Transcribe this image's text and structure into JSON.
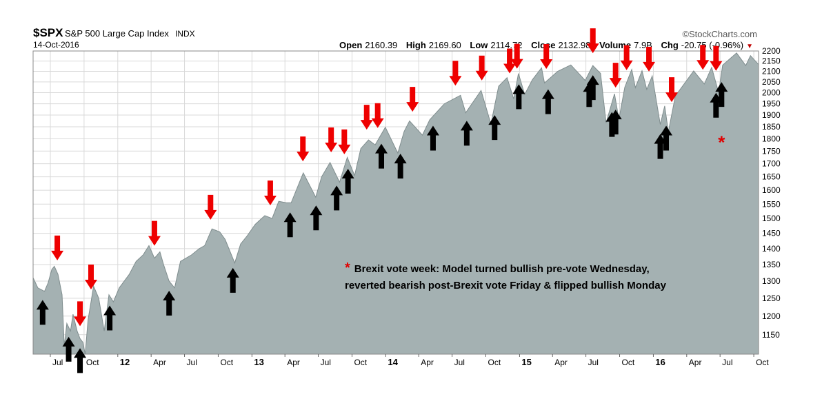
{
  "header": {
    "ticker": "$SPX",
    "name": "S&P 500 Large Cap Index",
    "exchange": "INDX",
    "date": "14-Oct-2016",
    "brand": "©StockCharts.com",
    "open_label": "Open",
    "open": "2160.39",
    "high_label": "High",
    "high": "2169.60",
    "low_label": "Low",
    "low": "2114.72",
    "close_label": "Close",
    "close": "2132.98",
    "volume_label": "Volume",
    "volume": "7.9B",
    "chg_label": "Chg",
    "chg": "-20.75 (-0.96%)"
  },
  "annotation": {
    "star": "*",
    "line1": "Brexit vote week: Model turned bullish pre-vote Wednesday,",
    "line2": "reverted bearish post-Brexit vote Friday & flipped bullish Monday"
  },
  "colors": {
    "area_fill": "#a4b1b2",
    "area_line": "#7f8d8e",
    "grid": "#d9d9d9",
    "sell_arrow": "#ee0000",
    "buy_arrow": "#000000",
    "star": "#e00000"
  },
  "chart_data": {
    "type": "area",
    "y_scale": "log",
    "ylim": [
      1100,
      2200
    ],
    "xlim": [
      "2011-05-15",
      "2016-10-14"
    ],
    "y_ticks": [
      1150,
      1200,
      1250,
      1300,
      1350,
      1400,
      1450,
      1500,
      1550,
      1600,
      1650,
      1700,
      1750,
      1800,
      1850,
      1900,
      1950,
      2000,
      2050,
      2100,
      2150,
      2200
    ],
    "x_ticks": [
      {
        "date": "2011-07-01",
        "label": "Jul"
      },
      {
        "date": "2011-10-01",
        "label": "Oct"
      },
      {
        "date": "2012-01-01",
        "label": "12",
        "bold": true
      },
      {
        "date": "2012-04-01",
        "label": "Apr"
      },
      {
        "date": "2012-07-01",
        "label": "Jul"
      },
      {
        "date": "2012-10-01",
        "label": "Oct"
      },
      {
        "date": "2013-01-01",
        "label": "13",
        "bold": true
      },
      {
        "date": "2013-04-01",
        "label": "Apr"
      },
      {
        "date": "2013-07-01",
        "label": "Jul"
      },
      {
        "date": "2013-10-01",
        "label": "Oct"
      },
      {
        "date": "2014-01-01",
        "label": "14",
        "bold": true
      },
      {
        "date": "2014-04-01",
        "label": "Apr"
      },
      {
        "date": "2014-07-01",
        "label": "Jul"
      },
      {
        "date": "2014-10-01",
        "label": "Oct"
      },
      {
        "date": "2015-01-01",
        "label": "15",
        "bold": true
      },
      {
        "date": "2015-04-01",
        "label": "Apr"
      },
      {
        "date": "2015-07-01",
        "label": "Jul"
      },
      {
        "date": "2015-10-01",
        "label": "Oct"
      },
      {
        "date": "2016-01-01",
        "label": "16",
        "bold": true
      },
      {
        "date": "2016-04-01",
        "label": "Apr"
      },
      {
        "date": "2016-07-01",
        "label": "Jul"
      },
      {
        "date": "2016-10-01",
        "label": "Oct"
      }
    ],
    "series": [
      {
        "points": [
          [
            "2011-05-15",
            1310
          ],
          [
            "2011-05-28",
            1280
          ],
          [
            "2011-06-15",
            1270
          ],
          [
            "2011-06-25",
            1295
          ],
          [
            "2011-07-05",
            1335
          ],
          [
            "2011-07-12",
            1345
          ],
          [
            "2011-07-22",
            1320
          ],
          [
            "2011-08-02",
            1260
          ],
          [
            "2011-08-08",
            1120
          ],
          [
            "2011-08-15",
            1180
          ],
          [
            "2011-08-25",
            1160
          ],
          [
            "2011-09-01",
            1205
          ],
          [
            "2011-09-12",
            1160
          ],
          [
            "2011-09-20",
            1140
          ],
          [
            "2011-09-28",
            1130
          ],
          [
            "2011-10-04",
            1100
          ],
          [
            "2011-10-12",
            1190
          ],
          [
            "2011-10-20",
            1240
          ],
          [
            "2011-10-27",
            1285
          ],
          [
            "2011-11-10",
            1250
          ],
          [
            "2011-11-25",
            1160
          ],
          [
            "2011-12-08",
            1260
          ],
          [
            "2011-12-20",
            1240
          ],
          [
            "2012-01-05",
            1280
          ],
          [
            "2012-02-01",
            1320
          ],
          [
            "2012-02-20",
            1360
          ],
          [
            "2012-03-10",
            1380
          ],
          [
            "2012-03-26",
            1410
          ],
          [
            "2012-04-10",
            1370
          ],
          [
            "2012-04-25",
            1390
          ],
          [
            "2012-05-05",
            1350
          ],
          [
            "2012-05-20",
            1300
          ],
          [
            "2012-06-04",
            1280
          ],
          [
            "2012-06-20",
            1360
          ],
          [
            "2012-07-05",
            1370
          ],
          [
            "2012-07-20",
            1380
          ],
          [
            "2012-08-10",
            1400
          ],
          [
            "2012-08-25",
            1410
          ],
          [
            "2012-09-14",
            1465
          ],
          [
            "2012-10-05",
            1455
          ],
          [
            "2012-10-20",
            1430
          ],
          [
            "2012-11-15",
            1355
          ],
          [
            "2012-12-01",
            1415
          ],
          [
            "2012-12-18",
            1440
          ],
          [
            "2013-01-10",
            1480
          ],
          [
            "2013-02-05",
            1510
          ],
          [
            "2013-02-25",
            1500
          ],
          [
            "2013-03-15",
            1560
          ],
          [
            "2013-04-05",
            1555
          ],
          [
            "2013-04-18",
            1555
          ],
          [
            "2013-05-21",
            1665
          ],
          [
            "2013-06-24",
            1575
          ],
          [
            "2013-07-10",
            1650
          ],
          [
            "2013-08-02",
            1705
          ],
          [
            "2013-08-28",
            1630
          ],
          [
            "2013-09-18",
            1725
          ],
          [
            "2013-10-08",
            1655
          ],
          [
            "2013-10-25",
            1760
          ],
          [
            "2013-11-15",
            1795
          ],
          [
            "2013-12-03",
            1775
          ],
          [
            "2013-12-31",
            1848
          ],
          [
            "2014-02-03",
            1742
          ],
          [
            "2014-02-20",
            1830
          ],
          [
            "2014-03-07",
            1875
          ],
          [
            "2014-04-11",
            1815
          ],
          [
            "2014-05-01",
            1880
          ],
          [
            "2014-06-10",
            1950
          ],
          [
            "2014-07-24",
            1988
          ],
          [
            "2014-08-07",
            1910
          ],
          [
            "2014-09-18",
            2010
          ],
          [
            "2014-10-15",
            1862
          ],
          [
            "2014-11-05",
            2030
          ],
          [
            "2014-11-28",
            2070
          ],
          [
            "2014-12-16",
            1972
          ],
          [
            "2014-12-29",
            2090
          ],
          [
            "2015-01-15",
            1992
          ],
          [
            "2015-02-05",
            2060
          ],
          [
            "2015-03-02",
            2117
          ],
          [
            "2015-03-10",
            2045
          ],
          [
            "2015-04-15",
            2100
          ],
          [
            "2015-05-21",
            2131
          ],
          [
            "2015-06-29",
            2057
          ],
          [
            "2015-07-20",
            2128
          ],
          [
            "2015-08-10",
            2090
          ],
          [
            "2015-08-25",
            1867
          ],
          [
            "2015-09-17",
            1995
          ],
          [
            "2015-09-29",
            1882
          ],
          [
            "2015-10-15",
            2025
          ],
          [
            "2015-11-03",
            2109
          ],
          [
            "2015-11-13",
            2023
          ],
          [
            "2015-12-01",
            2103
          ],
          [
            "2015-12-14",
            2015
          ],
          [
            "2015-12-29",
            2078
          ],
          [
            "2016-01-20",
            1860
          ],
          [
            "2016-02-01",
            1940
          ],
          [
            "2016-02-11",
            1829
          ],
          [
            "2016-03-01",
            1985
          ],
          [
            "2016-04-20",
            2102
          ],
          [
            "2016-05-19",
            2040
          ],
          [
            "2016-06-08",
            2119
          ],
          [
            "2016-06-27",
            2000
          ],
          [
            "2016-07-08",
            2130
          ],
          [
            "2016-08-15",
            2190
          ],
          [
            "2016-09-09",
            2128
          ],
          [
            "2016-09-22",
            2177
          ],
          [
            "2016-10-14",
            2133
          ]
        ]
      }
    ],
    "sell_signals": [
      "2011-07-20",
      "2011-09-20",
      "2011-10-20",
      "2012-04-10",
      "2012-09-10",
      "2013-02-20",
      "2013-05-20",
      "2013-08-05",
      "2013-09-10",
      "2013-11-10",
      "2013-12-10",
      "2014-03-15",
      "2014-07-10",
      "2014-09-20",
      "2014-12-05",
      "2014-12-25",
      "2015-03-15",
      "2015-07-20",
      "2015-09-20",
      "2015-10-20",
      "2015-12-20",
      "2016-02-20",
      "2016-05-15",
      "2016-06-20"
    ],
    "buy_signals": [
      "2011-06-10",
      "2011-08-20",
      "2011-09-20",
      "2011-12-10",
      "2012-05-20",
      "2012-11-10",
      "2013-04-15",
      "2013-06-25",
      "2013-08-20",
      "2013-09-20",
      "2013-12-20",
      "2014-02-10",
      "2014-05-10",
      "2014-08-10",
      "2014-10-25",
      "2014-12-30",
      "2015-03-20",
      "2015-07-10",
      "2015-07-20",
      "2015-09-10",
      "2015-09-20",
      "2016-01-20",
      "2016-02-05",
      "2016-06-20",
      "2016-07-05"
    ],
    "brexit_marker": {
      "date": "2016-07-05",
      "value": 1800,
      "label": "*"
    }
  }
}
